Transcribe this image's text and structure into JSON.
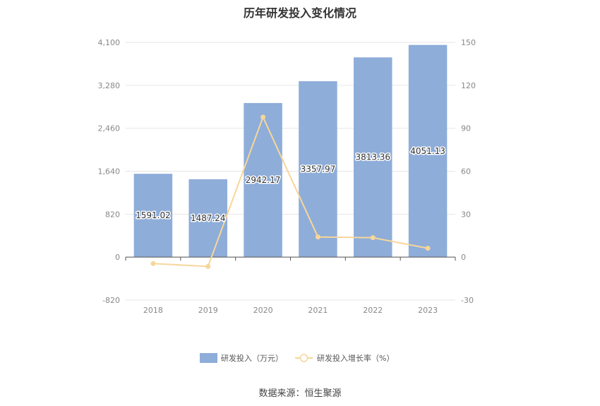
{
  "chart_data": {
    "type": "bar",
    "title": "历年研发投入变化情况",
    "categories": [
      "2018",
      "2019",
      "2020",
      "2021",
      "2022",
      "2023"
    ],
    "series": [
      {
        "name": "研发投入（万元）",
        "type": "bar",
        "axis": "left",
        "color": "#8eadd9",
        "values": [
          1591.02,
          1487.24,
          2942.17,
          3357.97,
          3813.36,
          4051.13
        ],
        "labels": [
          "1591.02",
          "1487.24",
          "2942.17",
          "3357.97",
          "3813.36",
          "4051.13"
        ]
      },
      {
        "name": "研发投入增长率（%）",
        "type": "line",
        "axis": "right",
        "color": "#f7d69a",
        "values": [
          -4.5,
          -6.5,
          97.8,
          14.1,
          13.6,
          6.2
        ]
      }
    ],
    "y_left": {
      "min": -820,
      "max": 4100,
      "ticks": [
        "4,100",
        "3,280",
        "2,460",
        "1,640",
        "820",
        "0",
        "-820"
      ]
    },
    "y_right": {
      "min": -30,
      "max": 150,
      "ticks": [
        "150",
        "120",
        "90",
        "60",
        "30",
        "0",
        "-30"
      ]
    },
    "grid": true,
    "legend_position": "bottom"
  },
  "source": "数据来源：恒生聚源"
}
